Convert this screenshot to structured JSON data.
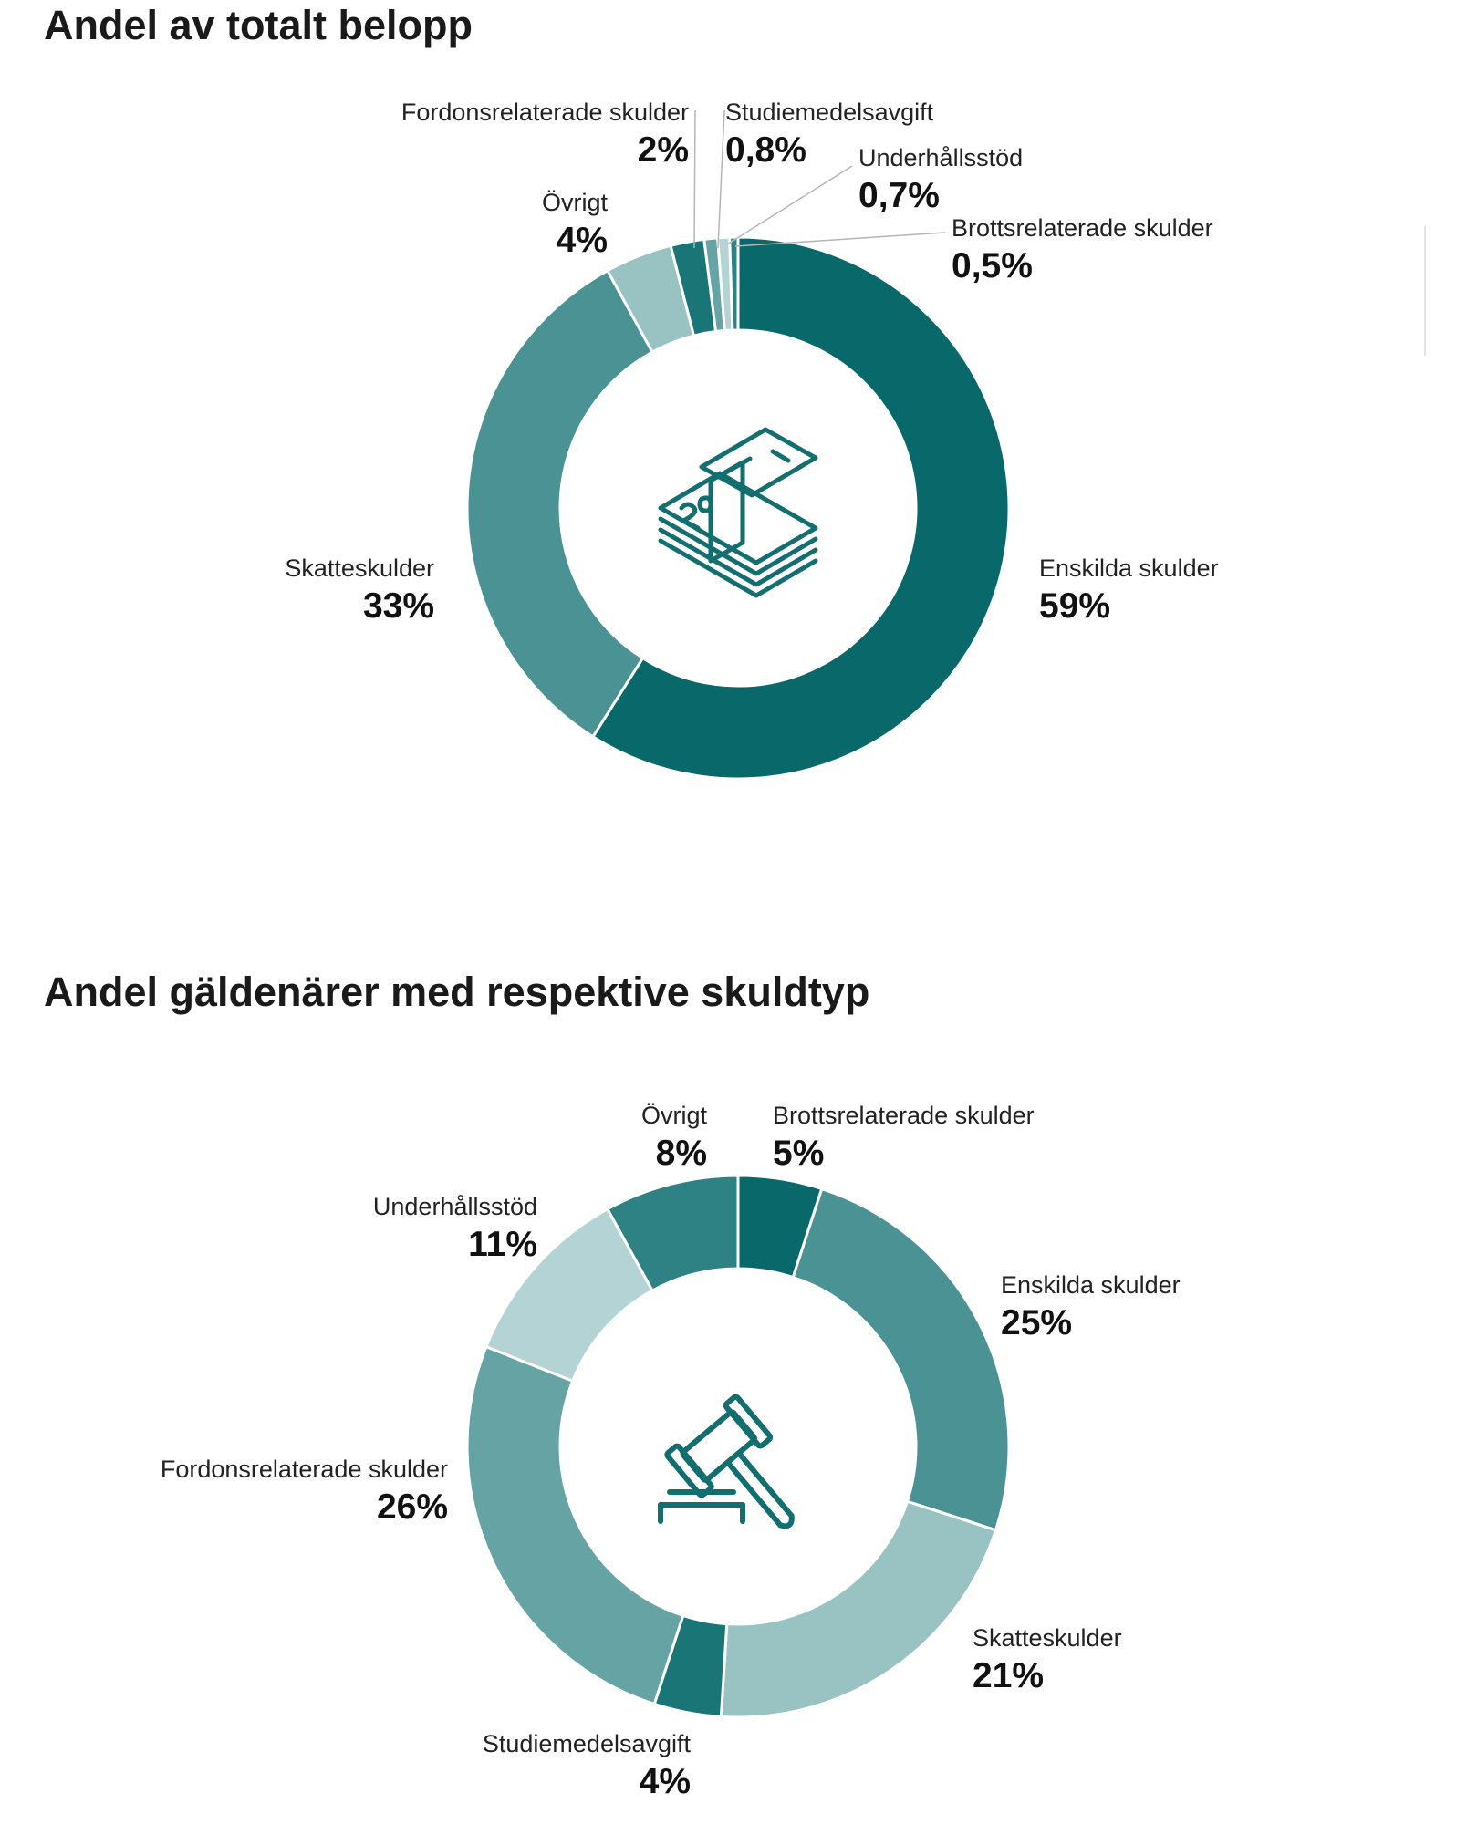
{
  "colors": {
    "c1": "#09686a",
    "c2": "#1a7576",
    "c3": "#2f8283",
    "c4": "#4b9294",
    "c5": "#65a3a4",
    "c6": "#99c2c3",
    "c7": "#b4d3d4",
    "icon": "#136e70",
    "leader": "#b5b5b5"
  },
  "chart_data": [
    {
      "type": "pie",
      "subtype": "donut",
      "title": "Andel av totalt belopp",
      "center_icon": "money-stack-icon",
      "slices": [
        {
          "label": "Enskilda skulder",
          "value": 59,
          "value_label": "59%",
          "color": "#09686a"
        },
        {
          "label": "Skatteskulder",
          "value": 33,
          "value_label": "33%",
          "color": "#4b9294"
        },
        {
          "label": "Övrigt",
          "value": 4,
          "value_label": "4%",
          "color": "#99c2c3"
        },
        {
          "label": "Fordonsrelaterade skulder",
          "value": 2,
          "value_label": "2%",
          "color": "#1a7576"
        },
        {
          "label": "Studiemedelsavgift",
          "value": 0.8,
          "value_label": "0,8%",
          "color": "#65a3a4"
        },
        {
          "label": "Underhållsstöd",
          "value": 0.7,
          "value_label": "0,7%",
          "color": "#b4d3d4"
        },
        {
          "label": "Brottsrelaterade skulder",
          "value": 0.5,
          "value_label": "0,5%",
          "color": "#2f8283"
        }
      ]
    },
    {
      "type": "pie",
      "subtype": "donut",
      "title": "Andel gäldenärer med respektive skuldtyp",
      "center_icon": "gavel-icon",
      "slices": [
        {
          "label": "Brottsrelaterade skulder",
          "value": 5,
          "value_label": "5%",
          "color": "#09686a"
        },
        {
          "label": "Enskilda skulder",
          "value": 25,
          "value_label": "25%",
          "color": "#4b9294"
        },
        {
          "label": "Skatteskulder",
          "value": 21,
          "value_label": "21%",
          "color": "#99c2c3"
        },
        {
          "label": "Studiemedelsavgift",
          "value": 4,
          "value_label": "4%",
          "color": "#1a7576"
        },
        {
          "label": "Fordonsrelaterade skulder",
          "value": 26,
          "value_label": "26%",
          "color": "#65a3a4"
        },
        {
          "label": "Underhållsstöd",
          "value": 11,
          "value_label": "11%",
          "color": "#b4d3d4"
        },
        {
          "label": "Övrigt",
          "value": 8,
          "value_label": "8%",
          "color": "#2f8283"
        }
      ]
    }
  ]
}
